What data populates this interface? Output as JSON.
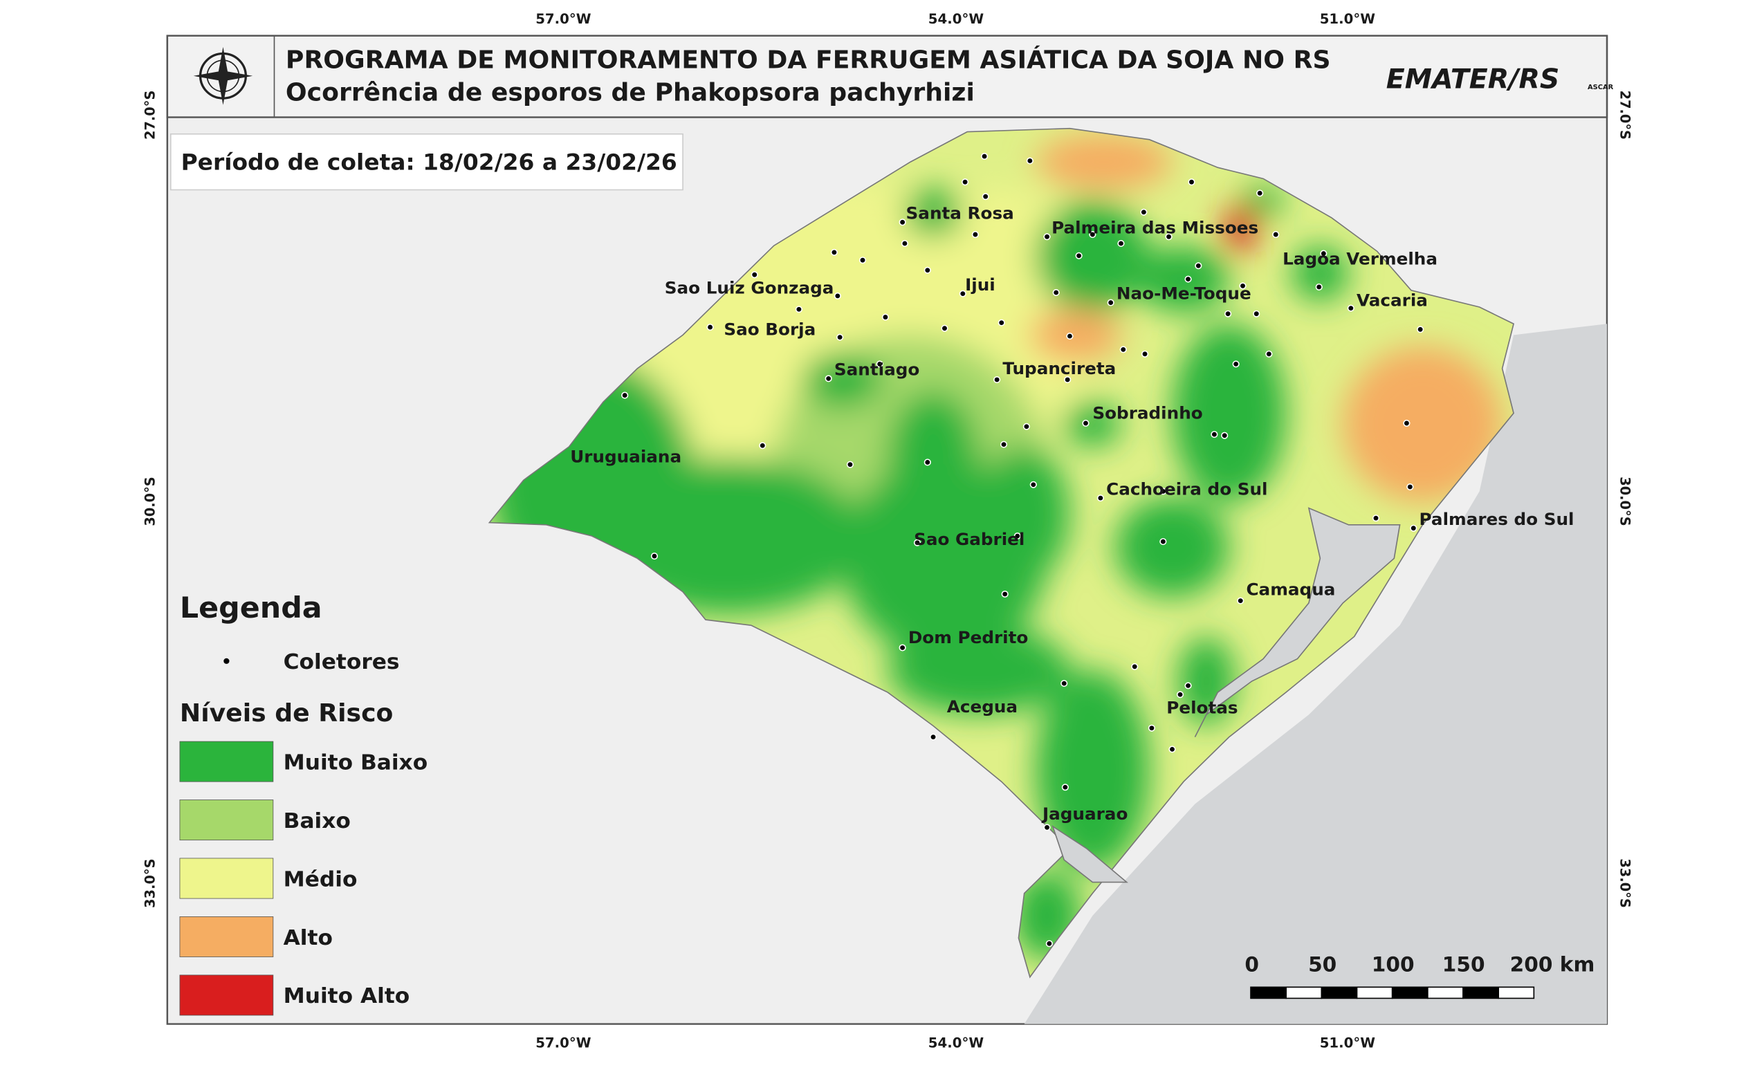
{
  "header": {
    "title": "PROGRAMA DE MONITORAMENTO DA FERRUGEM ASIÁTICA DA SOJA NO RS",
    "subtitle": "Ocorrência de esporos de Phakopsora pachyrhizi",
    "logo": "EMATER/RS",
    "logo_sub": "ASCAR"
  },
  "period": "Período de coleta: 18/02/26 a 23/02/26",
  "coords": {
    "top": [
      "57.0°W",
      "54.0°W",
      "51.0°W"
    ],
    "bottom": [
      "57.0°W",
      "54.0°W",
      "51.0°W"
    ],
    "left": [
      "27.0°S",
      "30.0°S",
      "33.0°S"
    ],
    "right": [
      "27.0°S",
      "30.0°S",
      "33.0°S"
    ]
  },
  "cities": [
    "Santa Rosa",
    "Palmeira das Missoes",
    "Lagoa Vermelha",
    "Sao Luiz Gonzaga",
    "Ijui",
    "Nao-Me-Toque",
    "Vacaria",
    "Sao Borja",
    "Santiago",
    "Tupanciretа",
    "Sobradinho",
    "Uruguaiana",
    "Cachoeira do Sul",
    "Palmares do Sul",
    "Sao Gabriel",
    "Camaqua",
    "Dom Pedrito",
    "Acegua",
    "Pelotas",
    "Jaguarao"
  ],
  "legend": {
    "title": "Legenda",
    "collectors": "Coletores",
    "risk_title": "Níveis de Risco",
    "items": [
      {
        "label": "Muito Baixo",
        "color": "#2bb43c"
      },
      {
        "label": "Baixo",
        "color": "#a6d86a"
      },
      {
        "label": "Médio",
        "color": "#eef58c"
      },
      {
        "label": "Alto",
        "color": "#f5ad62"
      },
      {
        "label": "Muito Alto",
        "color": "#d91e1e"
      }
    ]
  },
  "scale": {
    "labels": [
      "0",
      "50",
      "100",
      "150",
      "200 km"
    ]
  }
}
